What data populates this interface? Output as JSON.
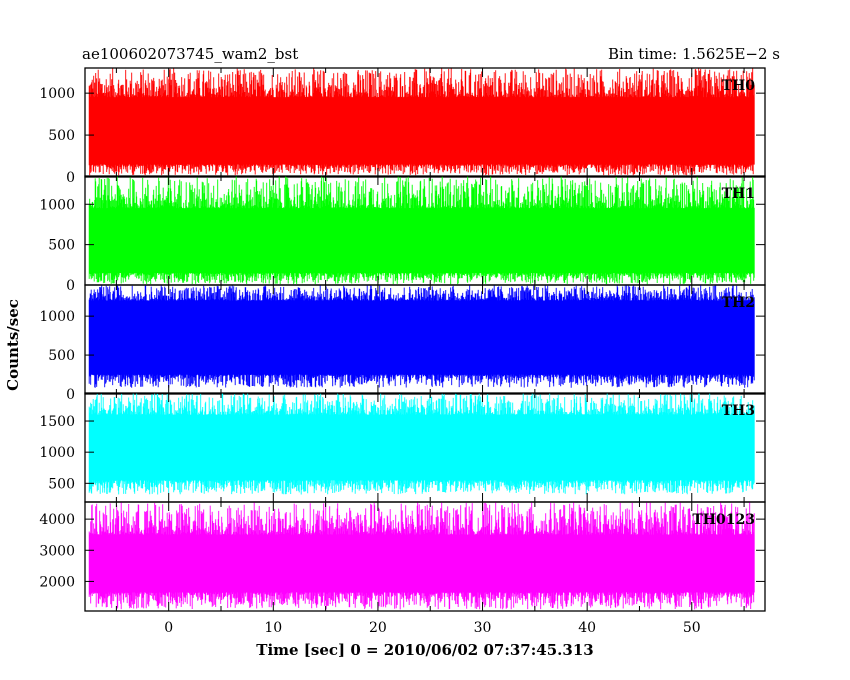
{
  "chart_data": {
    "type": "line",
    "title_left": "ae100602073745_wam2_bst",
    "title_right": "Bin time: 1.5625E−2 s",
    "xlabel": "Time [sec] 0 = 2010/06/02 07:37:45.313",
    "ylabel": "Counts/sec",
    "xlim": [
      -8,
      57
    ],
    "x_range": [
      -7.6,
      56.0
    ],
    "x_ticks": [
      0,
      10,
      20,
      30,
      40,
      50
    ],
    "grid": false,
    "panels": [
      {
        "name": "TH0",
        "color": "#ff0000",
        "ylim": [
          0,
          1300
        ],
        "y_ticks": [
          0,
          500,
          1000
        ],
        "signal": {
          "center": 550,
          "band_low": 150,
          "band_high": 950,
          "min": 20,
          "max": 1300
        }
      },
      {
        "name": "TH1",
        "color": "#00ff00",
        "ylim": [
          0,
          1350
        ],
        "y_ticks": [
          0,
          500,
          1000
        ],
        "signal": {
          "center": 550,
          "band_low": 150,
          "band_high": 950,
          "min": 10,
          "max": 1350
        }
      },
      {
        "name": "TH2",
        "color": "#0000ff",
        "ylim": [
          0,
          1400
        ],
        "y_ticks": [
          0,
          500,
          1000
        ],
        "signal": {
          "center": 720,
          "band_low": 250,
          "band_high": 1200,
          "min": 80,
          "max": 1400
        }
      },
      {
        "name": "TH3",
        "color": "#00ffff",
        "ylim": [
          200,
          1950
        ],
        "y_ticks": [
          500,
          1000,
          1500
        ],
        "signal": {
          "center": 1050,
          "band_low": 550,
          "band_high": 1600,
          "min": 320,
          "max": 1950
        }
      },
      {
        "name": "TH0123",
        "color": "#ff00ff",
        "ylim": [
          1050,
          4550
        ],
        "y_ticks": [
          2000,
          3000,
          4000
        ],
        "signal": {
          "center": 2550,
          "band_low": 1650,
          "band_high": 3500,
          "min": 1100,
          "max": 4550
        }
      }
    ]
  }
}
